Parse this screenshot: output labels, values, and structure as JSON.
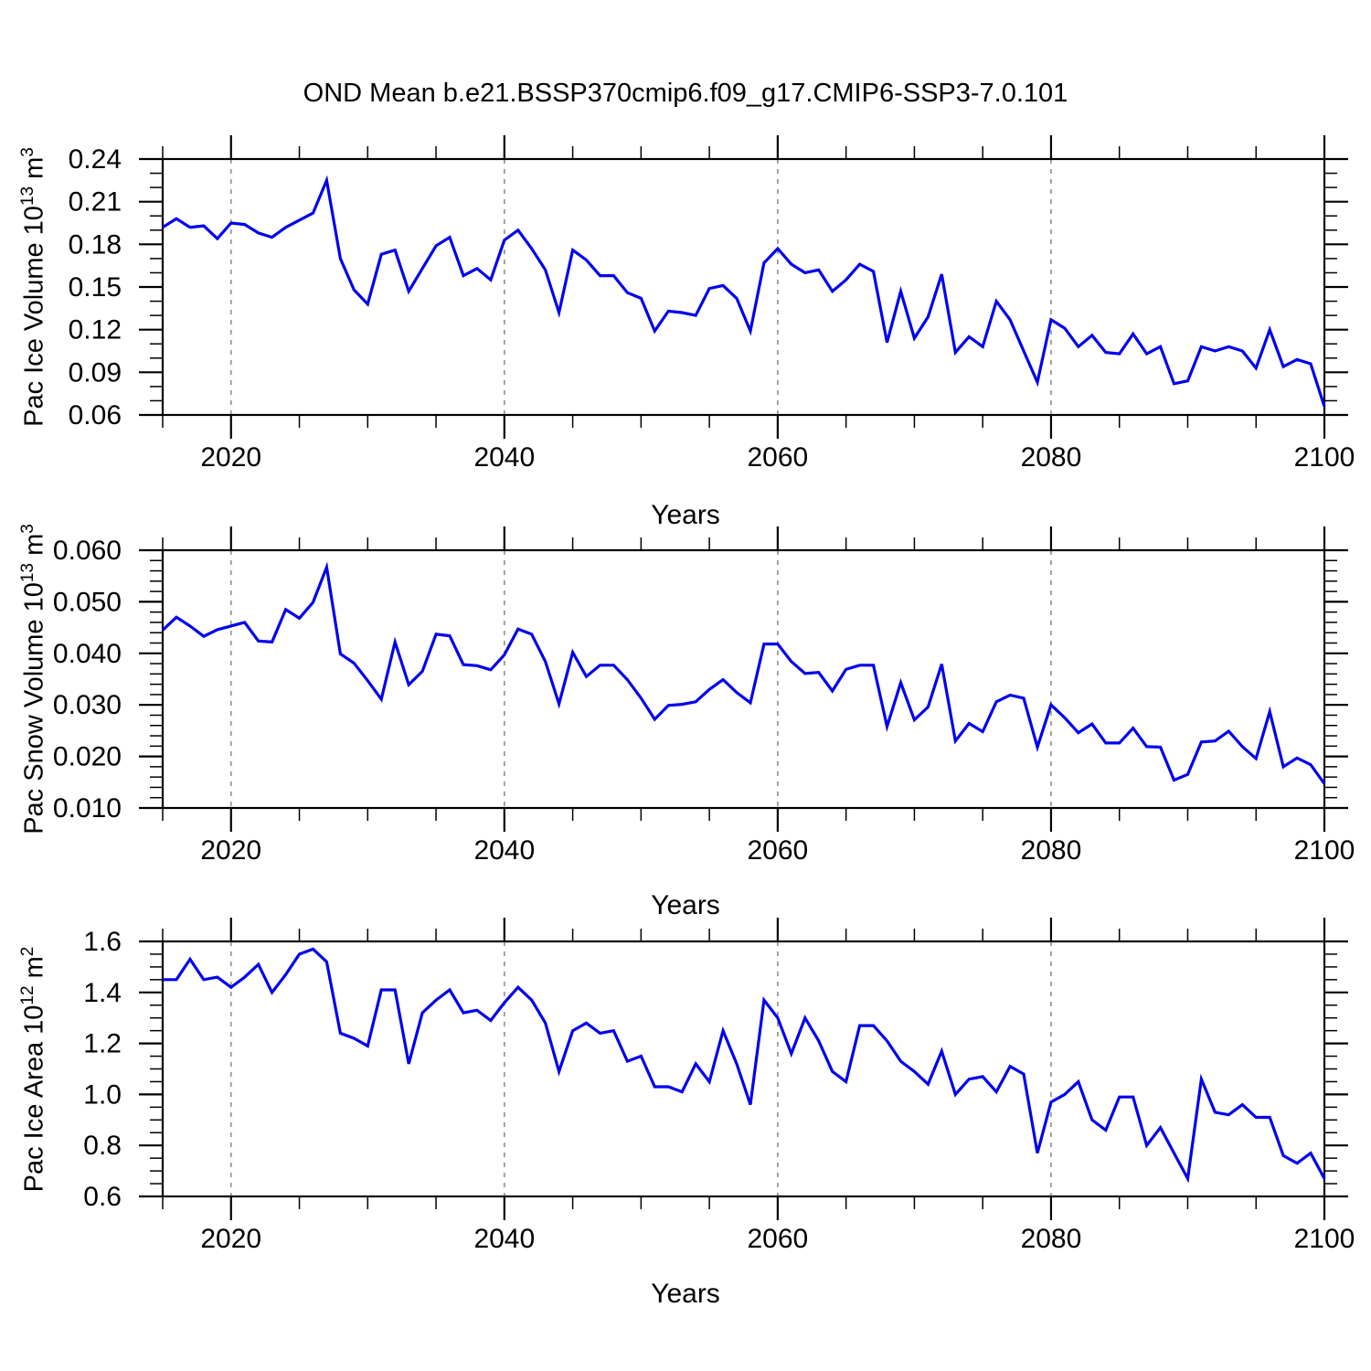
{
  "title": "OND Mean b.e21.BSSP370cmip6.f09_g17.CMIP6-SSP3-7.0.101",
  "colors": {
    "line": "#0000ee",
    "grid": "#949494",
    "frame": "#000000",
    "background": "#ffffff",
    "text": "#000000"
  },
  "years": [
    2015,
    2016,
    2017,
    2018,
    2019,
    2020,
    2021,
    2022,
    2023,
    2024,
    2025,
    2026,
    2027,
    2028,
    2029,
    2030,
    2031,
    2032,
    2033,
    2034,
    2035,
    2036,
    2037,
    2038,
    2039,
    2040,
    2041,
    2042,
    2043,
    2044,
    2045,
    2046,
    2047,
    2048,
    2049,
    2050,
    2051,
    2052,
    2053,
    2054,
    2055,
    2056,
    2057,
    2058,
    2059,
    2060,
    2061,
    2062,
    2063,
    2064,
    2065,
    2066,
    2067,
    2068,
    2069,
    2070,
    2071,
    2072,
    2073,
    2074,
    2075,
    2076,
    2077,
    2078,
    2079,
    2080,
    2081,
    2082,
    2083,
    2084,
    2085,
    2086,
    2087,
    2088,
    2089,
    2090,
    2091,
    2092,
    2093,
    2094,
    2095,
    2096,
    2097,
    2098,
    2099,
    2100
  ],
  "chart_data": [
    {
      "type": "line",
      "name": "pac-ice-volume",
      "xlabel": "Years",
      "ylabel_text": "Pac Ice Volume 10^13 m^3",
      "ylabel": {
        "pre": "Pac Ice Volume 10",
        "sup1": "13",
        "mid": " m",
        "sup2": "3"
      },
      "xlim": [
        2015,
        2100
      ],
      "ylim": [
        0.06,
        0.24
      ],
      "xticks": [
        2020,
        2040,
        2060,
        2080,
        2100
      ],
      "xtick_labels": [
        "2020",
        "2040",
        "2060",
        "2080",
        "2100"
      ],
      "x_minor_step": 5,
      "yticks": [
        0.06,
        0.09,
        0.12,
        0.15,
        0.18,
        0.21,
        0.24
      ],
      "ytick_labels": [
        "0.06",
        "0.09",
        "0.12",
        "0.15",
        "0.18",
        "0.21",
        "0.24"
      ],
      "y_minor_step": 0.01,
      "grid_years": [
        2020,
        2040,
        2060,
        2080
      ],
      "grid": "vertical-dashed",
      "legend": "none",
      "values": [
        0.192,
        0.198,
        0.192,
        0.193,
        0.184,
        0.195,
        0.194,
        0.188,
        0.185,
        0.192,
        0.197,
        0.202,
        0.225,
        0.17,
        0.148,
        0.138,
        0.173,
        0.176,
        0.147,
        0.163,
        0.179,
        0.185,
        0.158,
        0.163,
        0.155,
        0.183,
        0.19,
        0.177,
        0.162,
        0.132,
        0.176,
        0.169,
        0.158,
        0.158,
        0.146,
        0.142,
        0.119,
        0.133,
        0.132,
        0.13,
        0.149,
        0.151,
        0.142,
        0.119,
        0.167,
        0.177,
        0.166,
        0.16,
        0.162,
        0.147,
        0.155,
        0.166,
        0.161,
        0.111,
        0.147,
        0.114,
        0.129,
        0.159,
        0.104,
        0.115,
        0.108,
        0.14,
        0.127,
        0.105,
        0.083,
        0.127,
        0.121,
        0.108,
        0.116,
        0.104,
        0.103,
        0.117,
        0.103,
        0.108,
        0.082,
        0.084,
        0.108,
        0.105,
        0.108,
        0.105,
        0.093,
        0.12,
        0.094,
        0.099,
        0.096,
        0.066
      ]
    },
    {
      "type": "line",
      "name": "pac-snow-volume",
      "xlabel": "Years",
      "ylabel_text": "Pac Snow Volume 10^13 m^3",
      "ylabel": {
        "pre": "Pac Snow Volume 10",
        "sup1": "13",
        "mid": " m",
        "sup2": "3"
      },
      "xlim": [
        2015,
        2100
      ],
      "ylim": [
        0.01,
        0.06
      ],
      "xticks": [
        2020,
        2040,
        2060,
        2080,
        2100
      ],
      "xtick_labels": [
        "2020",
        "2040",
        "2060",
        "2080",
        "2100"
      ],
      "x_minor_step": 5,
      "yticks": [
        0.01,
        0.02,
        0.03,
        0.04,
        0.05,
        0.06
      ],
      "ytick_labels": [
        "0.010",
        "0.020",
        "0.030",
        "0.040",
        "0.050",
        "0.060"
      ],
      "y_minor_step": 0.002,
      "grid_years": [
        2020,
        2040,
        2060,
        2080
      ],
      "grid": "vertical-dashed",
      "legend": "none",
      "values": [
        0.0445,
        0.047,
        0.0453,
        0.0433,
        0.0446,
        0.0453,
        0.046,
        0.0424,
        0.0422,
        0.0485,
        0.0468,
        0.0499,
        0.0567,
        0.0399,
        0.0381,
        0.0347,
        0.0311,
        0.0422,
        0.0339,
        0.0365,
        0.0437,
        0.0434,
        0.0378,
        0.0376,
        0.0368,
        0.0397,
        0.0447,
        0.0437,
        0.0384,
        0.0302,
        0.0402,
        0.0355,
        0.0377,
        0.0377,
        0.0349,
        0.0313,
        0.0272,
        0.0299,
        0.0301,
        0.0306,
        0.033,
        0.0349,
        0.0324,
        0.0304,
        0.0418,
        0.0418,
        0.0384,
        0.0361,
        0.0363,
        0.0327,
        0.0369,
        0.0377,
        0.0377,
        0.0258,
        0.0343,
        0.0271,
        0.0296,
        0.0379,
        0.023,
        0.0264,
        0.0248,
        0.0306,
        0.0319,
        0.0313,
        0.0218,
        0.03,
        0.0275,
        0.0246,
        0.0263,
        0.0226,
        0.0226,
        0.0255,
        0.0219,
        0.0218,
        0.0154,
        0.0165,
        0.0228,
        0.023,
        0.0249,
        0.0219,
        0.0196,
        0.0287,
        0.018,
        0.0197,
        0.0184,
        0.0147
      ]
    },
    {
      "type": "line",
      "name": "pac-ice-area",
      "xlabel": "Years",
      "ylabel_text": "Pac Ice Area 10^12 m^2",
      "ylabel": {
        "pre": "Pac Ice Area 10",
        "sup1": "12",
        "mid": " m",
        "sup2": "2"
      },
      "xlim": [
        2015,
        2100
      ],
      "ylim": [
        0.6,
        1.6
      ],
      "xticks": [
        2020,
        2040,
        2060,
        2080,
        2100
      ],
      "xtick_labels": [
        "2020",
        "2040",
        "2060",
        "2080",
        "2100"
      ],
      "x_minor_step": 5,
      "yticks": [
        0.6,
        0.8,
        1.0,
        1.2,
        1.4,
        1.6
      ],
      "ytick_labels": [
        "0.6",
        "0.8",
        "1.0",
        "1.2",
        "1.4",
        "1.6"
      ],
      "y_minor_step": 0.05,
      "grid_years": [
        2020,
        2040,
        2060,
        2080
      ],
      "grid": "vertical-dashed",
      "legend": "none",
      "values": [
        1.45,
        1.45,
        1.53,
        1.45,
        1.46,
        1.42,
        1.46,
        1.51,
        1.4,
        1.47,
        1.55,
        1.57,
        1.52,
        1.24,
        1.22,
        1.19,
        1.41,
        1.41,
        1.12,
        1.32,
        1.37,
        1.41,
        1.32,
        1.33,
        1.29,
        1.36,
        1.42,
        1.37,
        1.28,
        1.09,
        1.25,
        1.28,
        1.24,
        1.25,
        1.13,
        1.15,
        1.03,
        1.03,
        1.01,
        1.12,
        1.05,
        1.25,
        1.12,
        0.96,
        1.37,
        1.3,
        1.16,
        1.3,
        1.21,
        1.09,
        1.05,
        1.27,
        1.27,
        1.21,
        1.13,
        1.09,
        1.04,
        1.17,
        1.0,
        1.06,
        1.07,
        1.01,
        1.11,
        1.08,
        0.77,
        0.97,
        1.0,
        1.05,
        0.9,
        0.86,
        0.99,
        0.99,
        0.8,
        0.87,
        0.77,
        0.67,
        1.06,
        0.93,
        0.92,
        0.96,
        0.91,
        0.91,
        0.76,
        0.73,
        0.77,
        0.67
      ]
    }
  ]
}
